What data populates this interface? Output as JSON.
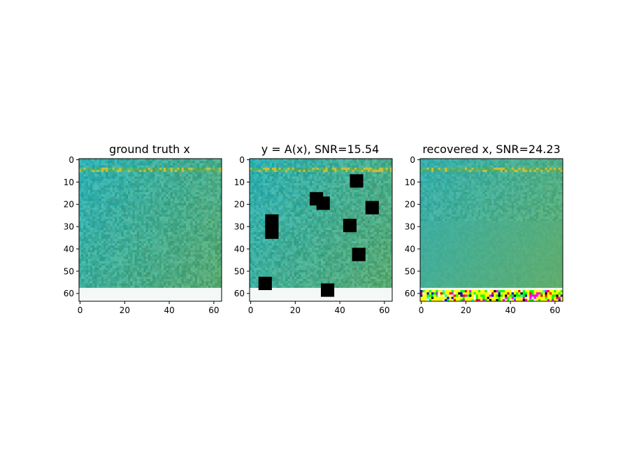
{
  "chart_data": [
    {
      "type": "heatmap",
      "title": "ground truth x",
      "image_size": [
        64,
        64
      ],
      "xlim": [
        -0.5,
        63.5
      ],
      "ylim": [
        63.5,
        -0.5
      ],
      "xticks": [
        0,
        20,
        40,
        60
      ],
      "yticks": [
        0,
        10,
        20,
        30,
        40,
        50,
        60
      ],
      "xtick_labels": [
        "0",
        "20",
        "40",
        "60"
      ],
      "ytick_labels": [
        "0",
        "10",
        "20",
        "30",
        "40",
        "50",
        "60"
      ],
      "grid": false,
      "base_color_left": "#2fb0b4",
      "base_color_right": "#5aa86e",
      "white_band_rows": [
        58,
        63
      ],
      "yellow_spot_row": 4,
      "masked_blocks": []
    },
    {
      "type": "heatmap",
      "title": "y = A(x), SNR=15.54",
      "image_size": [
        64,
        64
      ],
      "xlim": [
        -0.5,
        63.5
      ],
      "ylim": [
        63.5,
        -0.5
      ],
      "xticks": [
        0,
        20,
        40,
        60
      ],
      "yticks": [
        0,
        10,
        20,
        30,
        40,
        50,
        60
      ],
      "xtick_labels": [
        "0",
        "20",
        "40",
        "60"
      ],
      "ytick_labels": [
        "0",
        "10",
        "20",
        "30",
        "40",
        "50",
        "60"
      ],
      "grid": false,
      "base_color_left": "#2fb0b4",
      "base_color_right": "#5aa86e",
      "white_band_rows": [
        58,
        63
      ],
      "yellow_spot_row": 4,
      "masked_blocks": [
        {
          "col": 27,
          "row": 15,
          "size": 6
        },
        {
          "col": 30,
          "row": 17,
          "size": 6
        },
        {
          "col": 45,
          "row": 7,
          "size": 6
        },
        {
          "col": 52,
          "row": 19,
          "size": 6
        },
        {
          "col": 7,
          "row": 25,
          "size": 6
        },
        {
          "col": 7,
          "row": 30,
          "size": 6
        },
        {
          "col": 42,
          "row": 27,
          "size": 6
        },
        {
          "col": 46,
          "row": 40,
          "size": 6
        },
        {
          "col": 4,
          "row": 53,
          "size": 6
        },
        {
          "col": 32,
          "row": 56,
          "size": 6
        }
      ]
    },
    {
      "type": "heatmap",
      "title": "recovered x, SNR=24.23",
      "image_size": [
        64,
        64
      ],
      "xlim": [
        -0.5,
        63.5
      ],
      "ylim": [
        63.5,
        -0.5
      ],
      "xticks": [
        0,
        20,
        40,
        60
      ],
      "yticks": [
        0,
        10,
        20,
        30,
        40,
        50,
        60
      ],
      "xtick_labels": [
        "0",
        "20",
        "40",
        "60"
      ],
      "ytick_labels": [
        "0",
        "10",
        "20",
        "30",
        "40",
        "50",
        "60"
      ],
      "grid": false,
      "base_color_left": "#35aeae",
      "base_color_right": "#62ad6a",
      "white_band_rows": [
        58,
        59
      ],
      "artifact_rows": [
        59,
        63
      ],
      "artifact_colors": [
        "#ffff00",
        "#00ff00",
        "#ff00ff",
        "#000000",
        "#ffffff",
        "#ff0000",
        "#00ffff",
        "#0000ff"
      ],
      "yellow_spot_row": 4,
      "masked_blocks": []
    }
  ]
}
